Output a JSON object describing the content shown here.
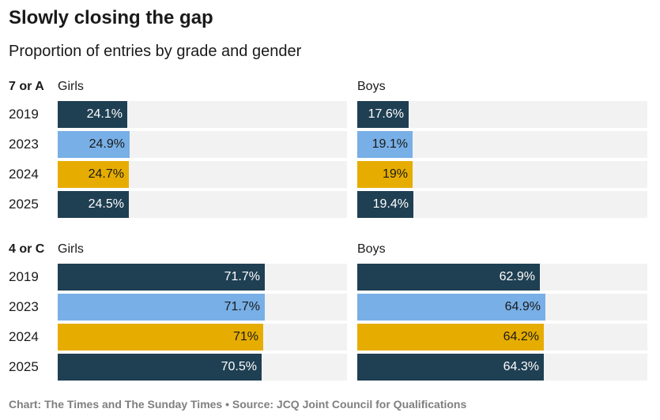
{
  "chart_data": {
    "type": "bar",
    "title": "Slowly closing the gap",
    "subtitle": "Proportion of entries by grade and gender",
    "footer": "Chart: The Times and The Sunday Times • Source: JCQ Joint Council for Qualifications",
    "xlim": [
      0,
      100
    ],
    "categories": [
      "2019",
      "2023",
      "2024",
      "2025"
    ],
    "colors": {
      "2019": "#1f3f52",
      "2023": "#78afe6",
      "2024": "#e6ad00",
      "2025": "#1f3f52",
      "track": "#f2f2f2"
    },
    "groups": [
      {
        "label": "7 or A",
        "series": [
          {
            "name": "Girls",
            "values": [
              24.1,
              24.9,
              24.7,
              24.5
            ],
            "labels": [
              "24.1%",
              "24.9%",
              "24.7%",
              "24.5%"
            ]
          },
          {
            "name": "Boys",
            "values": [
              17.6,
              19.1,
              19.0,
              19.4
            ],
            "labels": [
              "17.6%",
              "19.1%",
              "19%",
              "19.4%"
            ]
          }
        ]
      },
      {
        "label": "4 or C",
        "series": [
          {
            "name": "Girls",
            "values": [
              71.7,
              71.7,
              71.0,
              70.5
            ],
            "labels": [
              "71.7%",
              "71.7%",
              "71%",
              "70.5%"
            ]
          },
          {
            "name": "Boys",
            "values": [
              62.9,
              64.9,
              64.2,
              64.3
            ],
            "labels": [
              "62.9%",
              "64.9%",
              "64.2%",
              "64.3%"
            ]
          }
        ]
      }
    ]
  }
}
